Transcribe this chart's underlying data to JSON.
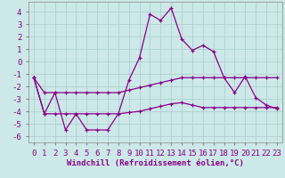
{
  "xlabel": "Windchill (Refroidissement éolien,°C)",
  "x": [
    0,
    1,
    2,
    3,
    4,
    5,
    6,
    7,
    8,
    9,
    10,
    11,
    12,
    13,
    14,
    15,
    16,
    17,
    18,
    19,
    20,
    21,
    22,
    23
  ],
  "line1": [
    -1.3,
    -4.2,
    -2.5,
    -5.5,
    -4.2,
    -5.5,
    -5.5,
    -5.5,
    -4.2,
    -1.5,
    0.3,
    3.8,
    3.3,
    4.3,
    1.8,
    0.9,
    1.3,
    0.8,
    -1.3,
    -2.5,
    -1.2,
    -2.9,
    -3.5,
    -3.8
  ],
  "line2": [
    -1.3,
    -2.5,
    -2.5,
    -2.5,
    -2.5,
    -2.5,
    -2.5,
    -2.5,
    -2.5,
    -2.3,
    -2.1,
    -1.9,
    -1.7,
    -1.5,
    -1.3,
    -1.3,
    -1.3,
    -1.3,
    -1.3,
    -1.3,
    -1.3,
    -1.3,
    -1.3,
    -1.3
  ],
  "line3": [
    -1.3,
    -4.2,
    -4.2,
    -4.2,
    -4.2,
    -4.2,
    -4.2,
    -4.2,
    -4.2,
    -4.1,
    -4.0,
    -3.8,
    -3.6,
    -3.4,
    -3.3,
    -3.5,
    -3.7,
    -3.7,
    -3.7,
    -3.7,
    -3.7,
    -3.7,
    -3.7,
    -3.7
  ],
  "bg_color": "#cce8e8",
  "grid_color": "#aacccc",
  "line_color": "#880088",
  "ylim": [
    -6.5,
    4.8
  ],
  "yticks": [
    -6,
    -5,
    -4,
    -3,
    -2,
    -1,
    0,
    1,
    2,
    3,
    4
  ],
  "tick_fontsize": 6.5,
  "label_fontsize": 6.5
}
